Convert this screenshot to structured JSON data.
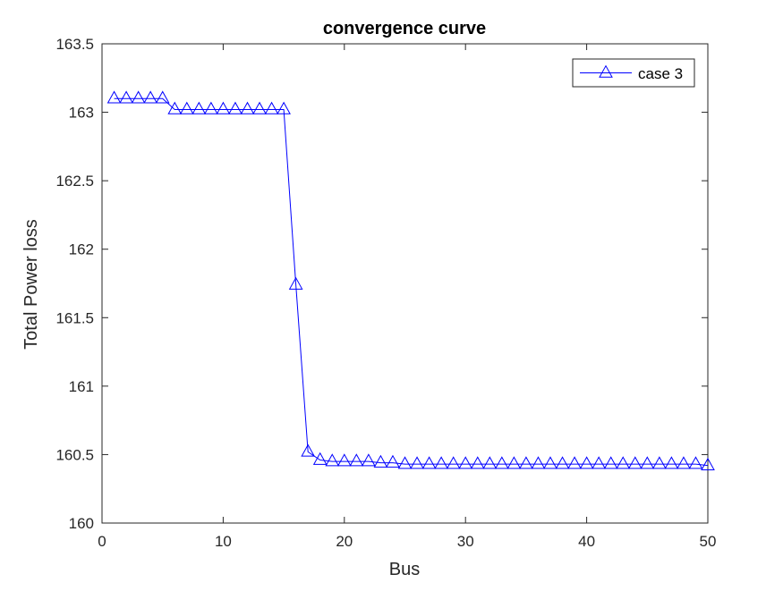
{
  "chart_data": {
    "type": "line",
    "title": "convergence curve",
    "xlabel": "Bus",
    "ylabel": "Total Power loss",
    "xlim": [
      0,
      50
    ],
    "ylim": [
      160,
      163.5
    ],
    "xticks": [
      0,
      10,
      20,
      30,
      40,
      50
    ],
    "yticks": [
      160,
      160.5,
      161,
      161.5,
      162,
      162.5,
      163,
      163.5
    ],
    "xtick_labels": [
      "0",
      "10",
      "20",
      "30",
      "40",
      "50"
    ],
    "ytick_labels": [
      "160",
      "160.5",
      "161",
      "161.5",
      "162",
      "162.5",
      "163",
      "163.5"
    ],
    "grid": false,
    "legend_position": "top-right",
    "series": [
      {
        "name": "case 3",
        "color": "#0000ff",
        "marker": "triangle",
        "x": [
          1,
          2,
          3,
          4,
          5,
          6,
          7,
          8,
          9,
          10,
          11,
          12,
          13,
          14,
          15,
          16,
          17,
          18,
          19,
          20,
          21,
          22,
          23,
          24,
          25,
          26,
          27,
          28,
          29,
          30,
          31,
          32,
          33,
          34,
          35,
          36,
          37,
          38,
          39,
          40,
          41,
          42,
          43,
          44,
          45,
          46,
          47,
          48,
          49,
          50
        ],
        "y": [
          163.1,
          163.1,
          163.1,
          163.1,
          163.1,
          163.02,
          163.02,
          163.02,
          163.02,
          163.02,
          163.02,
          163.02,
          163.02,
          163.02,
          163.02,
          161.74,
          160.52,
          160.46,
          160.45,
          160.45,
          160.45,
          160.45,
          160.44,
          160.44,
          160.43,
          160.43,
          160.43,
          160.43,
          160.43,
          160.43,
          160.43,
          160.43,
          160.43,
          160.43,
          160.43,
          160.43,
          160.43,
          160.43,
          160.43,
          160.43,
          160.43,
          160.43,
          160.43,
          160.43,
          160.43,
          160.43,
          160.43,
          160.43,
          160.43,
          160.42
        ]
      }
    ]
  }
}
